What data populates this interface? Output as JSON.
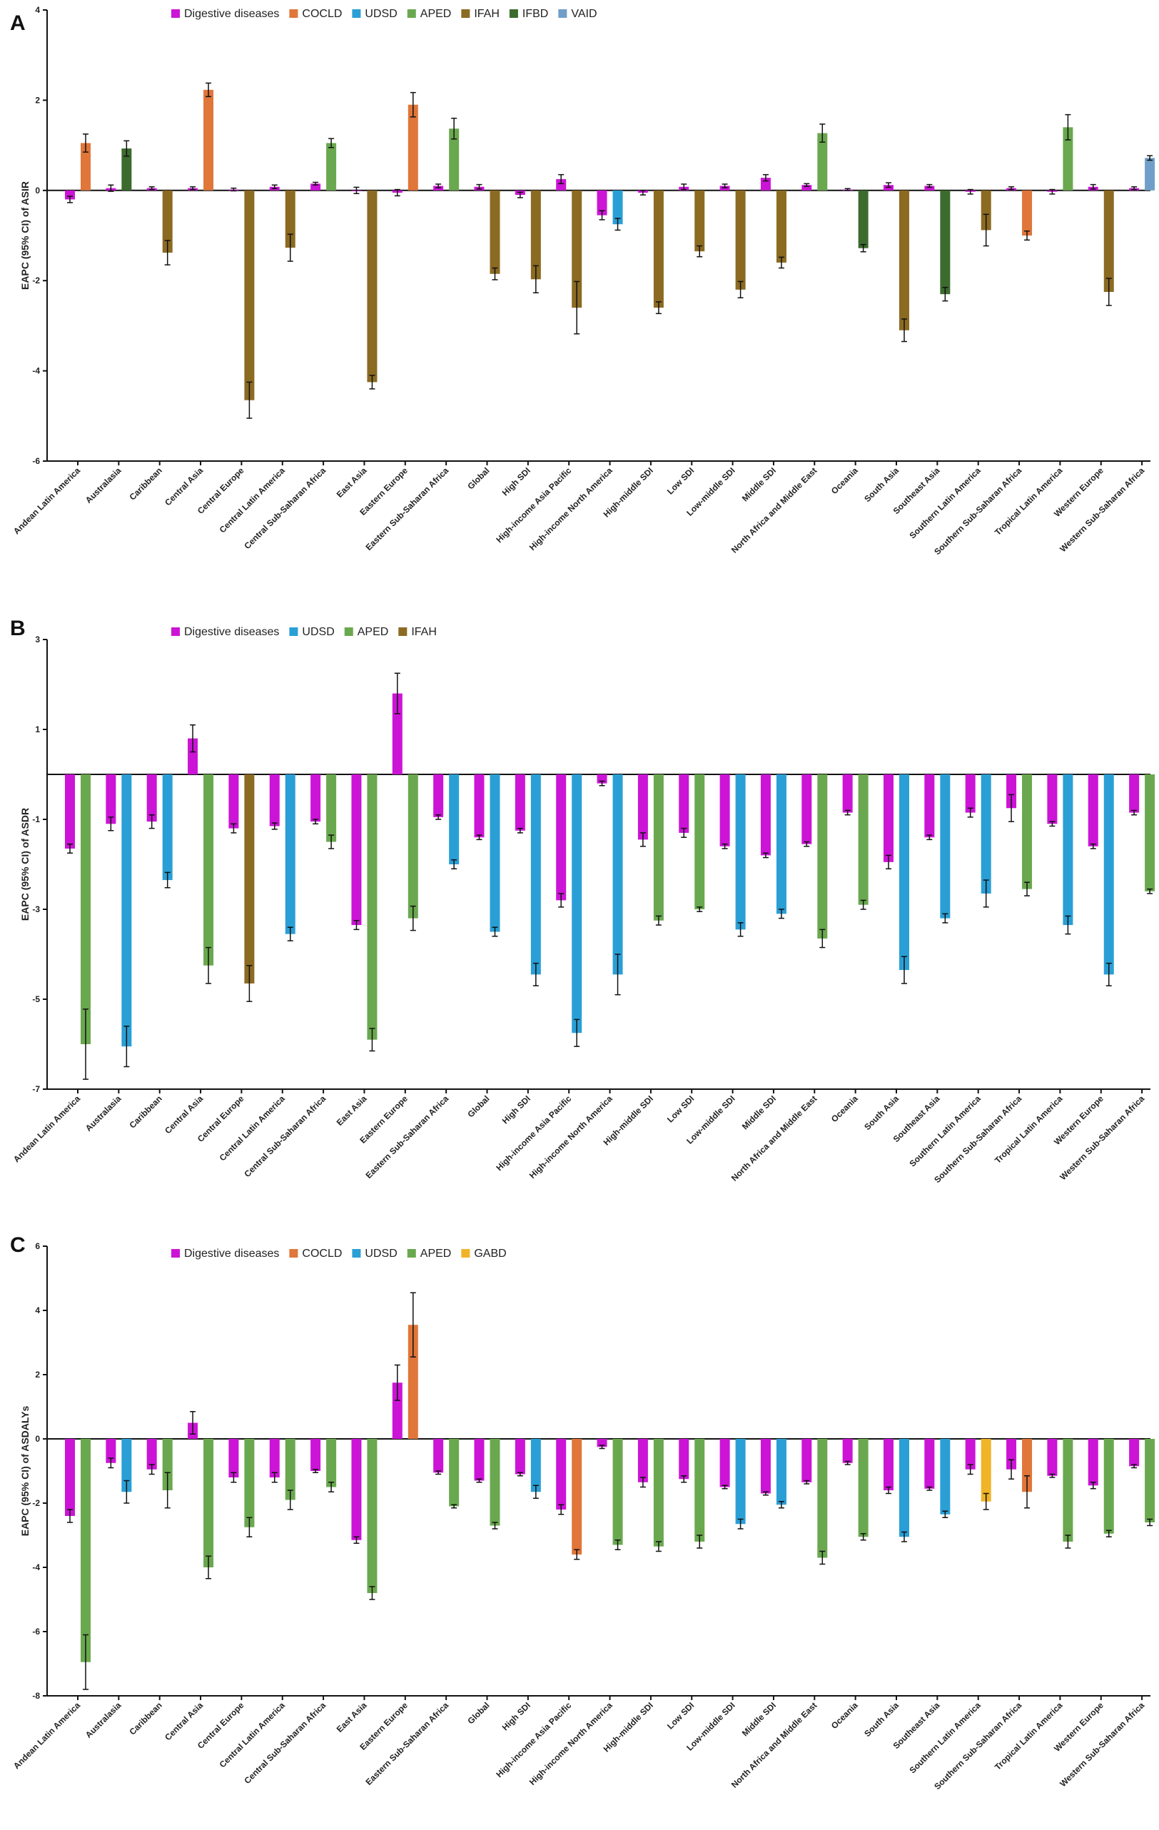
{
  "colors": {
    "Digestive diseases": "#cc14d6",
    "COCLD": "#e0763a",
    "UDSD": "#2a9fd6",
    "APED": "#6aa84f",
    "IFAH": "#8b6a22",
    "IFBD": "#3c6b2e",
    "VAID": "#6f9fc9",
    "GABD": "#f0b429"
  },
  "categories": [
    "Andean Latin America",
    "Australasia",
    "Caribbean",
    "Central Asia",
    "Central Europe",
    "Central Latin America",
    "Central Sub-Saharan Africa",
    "East Asia",
    "Eastern Europe",
    "Eastern Sub-Saharan Africa",
    "Global",
    "High SDI",
    "High-income Asia Pacific",
    "High-income North America",
    "High-middle SDI",
    "Low SDI",
    "Low-middle SDI",
    "Middle SDI",
    "North Africa and Middle East",
    "Oceania",
    "South Asia",
    "Southeast Asia",
    "Southern Latin America",
    "Southern Sub-Saharan Africa",
    "Tropical Latin America",
    "Western Europe",
    "Western Sub-Saharan Africa"
  ],
  "chart_data": [
    {
      "panel": "A",
      "type": "bar",
      "ylabel": "EAPC (95% CI) of ASIR",
      "ylim": [
        -6,
        4
      ],
      "yticks": [
        -6,
        -4,
        -2,
        0,
        2,
        4
      ],
      "legend": [
        "Digestive diseases",
        "COCLD",
        "UDSD",
        "APED",
        "IFAH",
        "IFBD",
        "VAID"
      ],
      "bars": [
        [
          [
            "Digestive diseases",
            -0.2,
            0.07
          ],
          [
            "COCLD",
            1.05,
            0.2
          ]
        ],
        [
          [
            "Digestive diseases",
            0.05,
            0.07
          ],
          [
            "IFBD",
            0.93,
            0.17
          ]
        ],
        [
          [
            "Digestive diseases",
            0.05,
            0.03
          ],
          [
            "IFAH",
            -1.38,
            0.27
          ]
        ],
        [
          [
            "Digestive diseases",
            0.05,
            0.03
          ],
          [
            "COCLD",
            2.23,
            0.15
          ]
        ],
        [
          [
            "Digestive diseases",
            0.02,
            0.03
          ],
          [
            "IFAH",
            -4.65,
            0.4
          ]
        ],
        [
          [
            "Digestive diseases",
            0.08,
            0.04
          ],
          [
            "IFAH",
            -1.27,
            0.3
          ]
        ],
        [
          [
            "Digestive diseases",
            0.15,
            0.03
          ],
          [
            "APED",
            1.05,
            0.1
          ]
        ],
        [
          [
            "Digestive diseases",
            0,
            0.07
          ],
          [
            "IFAH",
            -4.25,
            0.15
          ]
        ],
        [
          [
            "Digestive diseases",
            -0.05,
            0.07
          ],
          [
            "COCLD",
            1.9,
            0.27
          ]
        ],
        [
          [
            "Digestive diseases",
            0.1,
            0.04
          ],
          [
            "APED",
            1.37,
            0.23
          ]
        ],
        [
          [
            "Digestive diseases",
            0.08,
            0.05
          ],
          [
            "IFAH",
            -1.85,
            0.13
          ]
        ],
        [
          [
            "Digestive diseases",
            -0.1,
            0.06
          ],
          [
            "IFAH",
            -1.97,
            0.3
          ]
        ],
        [
          [
            "Digestive diseases",
            0.25,
            0.1
          ],
          [
            "IFAH",
            -2.6,
            0.58
          ]
        ],
        [
          [
            "Digestive diseases",
            -0.55,
            0.1
          ],
          [
            "UDSD",
            -0.75,
            0.13
          ]
        ],
        [
          [
            "Digestive diseases",
            -0.05,
            0.05
          ],
          [
            "IFAH",
            -2.6,
            0.13
          ]
        ],
        [
          [
            "Digestive diseases",
            0.08,
            0.06
          ],
          [
            "IFAH",
            -1.35,
            0.12
          ]
        ],
        [
          [
            "Digestive diseases",
            0.1,
            0.04
          ],
          [
            "IFAH",
            -2.2,
            0.18
          ]
        ],
        [
          [
            "Digestive diseases",
            0.28,
            0.07
          ],
          [
            "IFAH",
            -1.6,
            0.12
          ]
        ],
        [
          [
            "Digestive diseases",
            0.12,
            0.03
          ],
          [
            "APED",
            1.27,
            0.2
          ]
        ],
        [
          [
            "Digestive diseases",
            0.02,
            0.02
          ],
          [
            "IFBD",
            -1.28,
            0.08
          ]
        ],
        [
          [
            "Digestive diseases",
            0.12,
            0.05
          ],
          [
            "IFAH",
            -3.1,
            0.25
          ]
        ],
        [
          [
            "Digestive diseases",
            0.1,
            0.03
          ],
          [
            "IFBD",
            -2.3,
            0.15
          ]
        ],
        [
          [
            "Digestive diseases",
            -0.03,
            0.05
          ],
          [
            "IFAH",
            -0.88,
            0.35
          ]
        ],
        [
          [
            "Digestive diseases",
            0.05,
            0.03
          ],
          [
            "COCLD",
            -1.0,
            0.1
          ]
        ],
        [
          [
            "Digestive diseases",
            -0.03,
            0.05
          ],
          [
            "APED",
            1.4,
            0.28
          ]
        ],
        [
          [
            "Digestive diseases",
            0.08,
            0.05
          ],
          [
            "IFAH",
            -2.25,
            0.3
          ]
        ],
        [
          [
            "Digestive diseases",
            0.05,
            0.03
          ],
          [
            "VAID",
            0.72,
            0.05
          ]
        ]
      ]
    },
    {
      "panel": "B",
      "type": "bar",
      "ylabel": "EAPC (95% CI) of ASDR",
      "ylim": [
        -7,
        3
      ],
      "yticks": [
        -7,
        -5,
        -3,
        -1,
        1,
        3
      ],
      "legend": [
        "Digestive diseases",
        "UDSD",
        "APED",
        "IFAH"
      ],
      "bars": [
        [
          [
            "Digestive diseases",
            -1.65,
            0.1
          ],
          [
            "APED",
            -6.0,
            0.78
          ]
        ],
        [
          [
            "Digestive diseases",
            -1.1,
            0.15
          ],
          [
            "UDSD",
            -6.05,
            0.45
          ]
        ],
        [
          [
            "Digestive diseases",
            -1.05,
            0.15
          ],
          [
            "UDSD",
            -2.35,
            0.17
          ]
        ],
        [
          [
            "Digestive diseases",
            0.8,
            0.3
          ],
          [
            "APED",
            -4.25,
            0.4
          ]
        ],
        [
          [
            "Digestive diseases",
            -1.2,
            0.1
          ],
          [
            "IFAH",
            -4.65,
            0.4
          ]
        ],
        [
          [
            "Digestive diseases",
            -1.15,
            0.07
          ],
          [
            "UDSD",
            -3.55,
            0.15
          ]
        ],
        [
          [
            "Digestive diseases",
            -1.05,
            0.05
          ],
          [
            "APED",
            -1.5,
            0.15
          ]
        ],
        [
          [
            "Digestive diseases",
            -3.35,
            0.1
          ],
          [
            "APED",
            -5.9,
            0.25
          ]
        ],
        [
          [
            "Digestive diseases",
            1.8,
            0.45
          ],
          [
            "APED",
            -3.2,
            0.27
          ]
        ],
        [
          [
            "Digestive diseases",
            -0.95,
            0.05
          ],
          [
            "UDSD",
            -2.0,
            0.1
          ]
        ],
        [
          [
            "Digestive diseases",
            -1.4,
            0.05
          ],
          [
            "UDSD",
            -3.5,
            0.1
          ]
        ],
        [
          [
            "Digestive diseases",
            -1.25,
            0.05
          ],
          [
            "UDSD",
            -4.45,
            0.25
          ]
        ],
        [
          [
            "Digestive diseases",
            -2.8,
            0.15
          ],
          [
            "UDSD",
            -5.75,
            0.3
          ]
        ],
        [
          [
            "Digestive diseases",
            -0.2,
            0.05
          ],
          [
            "UDSD",
            -4.45,
            0.45
          ]
        ],
        [
          [
            "Digestive diseases",
            -1.45,
            0.15
          ],
          [
            "APED",
            -3.25,
            0.1
          ]
        ],
        [
          [
            "Digestive diseases",
            -1.3,
            0.1
          ],
          [
            "APED",
            -3.0,
            0.05
          ]
        ],
        [
          [
            "Digestive diseases",
            -1.6,
            0.05
          ],
          [
            "UDSD",
            -3.45,
            0.15
          ]
        ],
        [
          [
            "Digestive diseases",
            -1.8,
            0.05
          ],
          [
            "UDSD",
            -3.1,
            0.1
          ]
        ],
        [
          [
            "Digestive diseases",
            -1.55,
            0.05
          ],
          [
            "APED",
            -3.65,
            0.2
          ]
        ],
        [
          [
            "Digestive diseases",
            -0.85,
            0.05
          ],
          [
            "APED",
            -2.9,
            0.1
          ]
        ],
        [
          [
            "Digestive diseases",
            -1.95,
            0.15
          ],
          [
            "UDSD",
            -4.35,
            0.3
          ]
        ],
        [
          [
            "Digestive diseases",
            -1.4,
            0.05
          ],
          [
            "UDSD",
            -3.2,
            0.1
          ]
        ],
        [
          [
            "Digestive diseases",
            -0.85,
            0.1
          ],
          [
            "UDSD",
            -2.65,
            0.3
          ]
        ],
        [
          [
            "Digestive diseases",
            -0.75,
            0.3
          ],
          [
            "APED",
            -2.55,
            0.15
          ]
        ],
        [
          [
            "Digestive diseases",
            -1.1,
            0.05
          ],
          [
            "UDSD",
            -3.35,
            0.2
          ]
        ],
        [
          [
            "Digestive diseases",
            -1.6,
            0.05
          ],
          [
            "UDSD",
            -4.45,
            0.25
          ]
        ],
        [
          [
            "Digestive diseases",
            -0.85,
            0.05
          ],
          [
            "APED",
            -2.6,
            0.05
          ]
        ]
      ]
    },
    {
      "panel": "C",
      "type": "bar",
      "ylabel": "EAPC (95% CI) of ASDALYs",
      "ylim": [
        -8,
        6
      ],
      "yticks": [
        -8,
        -6,
        -4,
        -2,
        0,
        2,
        4,
        6
      ],
      "legend": [
        "Digestive diseases",
        "COCLD",
        "UDSD",
        "APED",
        "GABD"
      ],
      "bars": [
        [
          [
            "Digestive diseases",
            -2.4,
            0.2
          ],
          [
            "APED",
            -6.95,
            0.85
          ]
        ],
        [
          [
            "Digestive diseases",
            -0.75,
            0.15
          ],
          [
            "UDSD",
            -1.65,
            0.35
          ]
        ],
        [
          [
            "Digestive diseases",
            -0.95,
            0.15
          ],
          [
            "APED",
            -1.6,
            0.55
          ]
        ],
        [
          [
            "Digestive diseases",
            0.5,
            0.35
          ],
          [
            "APED",
            -4.0,
            0.35
          ]
        ],
        [
          [
            "Digestive diseases",
            -1.2,
            0.15
          ],
          [
            "APED",
            -2.75,
            0.3
          ]
        ],
        [
          [
            "Digestive diseases",
            -1.2,
            0.15
          ],
          [
            "APED",
            -1.9,
            0.3
          ]
        ],
        [
          [
            "Digestive diseases",
            -1.0,
            0.05
          ],
          [
            "APED",
            -1.5,
            0.15
          ]
        ],
        [
          [
            "Digestive diseases",
            -3.15,
            0.1
          ],
          [
            "APED",
            -4.8,
            0.2
          ]
        ],
        [
          [
            "Digestive diseases",
            1.75,
            0.55
          ],
          [
            "COCLD",
            3.55,
            1.0
          ]
        ],
        [
          [
            "Digestive diseases",
            -1.05,
            0.05
          ],
          [
            "APED",
            -2.1,
            0.05
          ]
        ],
        [
          [
            "Digestive diseases",
            -1.3,
            0.05
          ],
          [
            "APED",
            -2.7,
            0.1
          ]
        ],
        [
          [
            "Digestive diseases",
            -1.1,
            0.05
          ],
          [
            "UDSD",
            -1.65,
            0.2
          ]
        ],
        [
          [
            "Digestive diseases",
            -2.2,
            0.15
          ],
          [
            "COCLD",
            -3.6,
            0.15
          ]
        ],
        [
          [
            "Digestive diseases",
            -0.25,
            0.05
          ],
          [
            "APED",
            -3.3,
            0.15
          ]
        ],
        [
          [
            "Digestive diseases",
            -1.35,
            0.15
          ],
          [
            "APED",
            -3.35,
            0.15
          ]
        ],
        [
          [
            "Digestive diseases",
            -1.25,
            0.1
          ],
          [
            "APED",
            -3.2,
            0.2
          ]
        ],
        [
          [
            "Digestive diseases",
            -1.5,
            0.05
          ],
          [
            "UDSD",
            -2.65,
            0.15
          ]
        ],
        [
          [
            "Digestive diseases",
            -1.7,
            0.05
          ],
          [
            "UDSD",
            -2.05,
            0.1
          ]
        ],
        [
          [
            "Digestive diseases",
            -1.35,
            0.05
          ],
          [
            "APED",
            -3.7,
            0.2
          ]
        ],
        [
          [
            "Digestive diseases",
            -0.75,
            0.05
          ],
          [
            "APED",
            -3.05,
            0.1
          ]
        ],
        [
          [
            "Digestive diseases",
            -1.6,
            0.1
          ],
          [
            "UDSD",
            -3.05,
            0.15
          ]
        ],
        [
          [
            "Digestive diseases",
            -1.55,
            0.05
          ],
          [
            "UDSD",
            -2.35,
            0.1
          ]
        ],
        [
          [
            "Digestive diseases",
            -0.95,
            0.15
          ],
          [
            "GABD",
            -1.95,
            0.25
          ]
        ],
        [
          [
            "Digestive diseases",
            -0.95,
            0.3
          ],
          [
            "COCLD",
            -1.65,
            0.5
          ]
        ],
        [
          [
            "Digestive diseases",
            -1.15,
            0.05
          ],
          [
            "APED",
            -3.2,
            0.2
          ]
        ],
        [
          [
            "Digestive diseases",
            -1.45,
            0.1
          ],
          [
            "APED",
            -2.95,
            0.1
          ]
        ],
        [
          [
            "Digestive diseases",
            -0.85,
            0.05
          ],
          [
            "APED",
            -2.6,
            0.1
          ]
        ]
      ]
    }
  ]
}
